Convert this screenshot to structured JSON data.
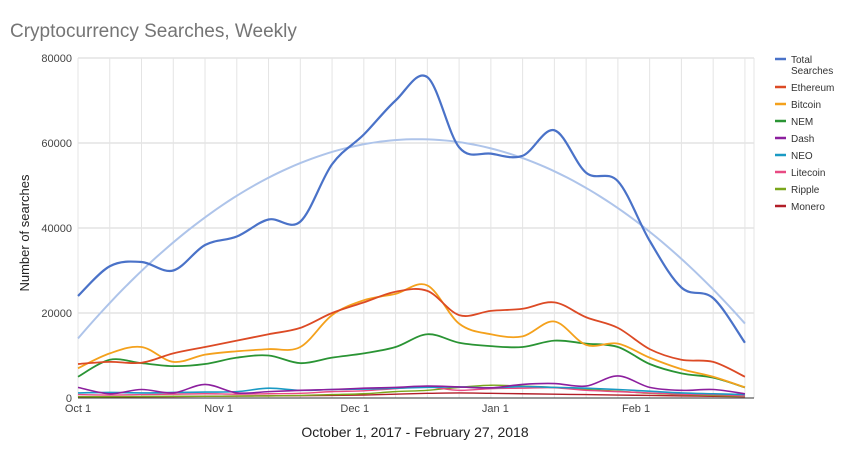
{
  "chart_data": {
    "type": "line",
    "title": "Cryptocurrency Searches, Weekly",
    "xlabel": "October 1, 2017 - February 27, 2018",
    "ylabel": "Number of searches",
    "ylim": [
      0,
      80000
    ],
    "yticks": [
      0,
      20000,
      40000,
      60000,
      80000
    ],
    "ytick_labels": [
      "0",
      "20000",
      "40000",
      "60000",
      "80000"
    ],
    "x_domain": [
      "2017-10-01",
      "2018-02-27"
    ],
    "xticks": [
      {
        "date": "2017-10-01",
        "label": "Oct 1"
      },
      {
        "date": "2017-11-01",
        "label": "Nov 1"
      },
      {
        "date": "2017-12-01",
        "label": "Dec 1"
      },
      {
        "date": "2018-01-01",
        "label": "Jan 1"
      },
      {
        "date": "2018-02-01",
        "label": "Feb 1"
      }
    ],
    "grid": true,
    "smooth": true,
    "legend_position": "right",
    "x": [
      "2017-10-01",
      "2017-10-08",
      "2017-10-15",
      "2017-10-22",
      "2017-10-29",
      "2017-11-05",
      "2017-11-12",
      "2017-11-19",
      "2017-11-26",
      "2017-12-03",
      "2017-12-10",
      "2017-12-17",
      "2017-12-24",
      "2017-12-31",
      "2018-01-07",
      "2018-01-14",
      "2018-01-21",
      "2018-01-28",
      "2018-02-04",
      "2018-02-11",
      "2018-02-18",
      "2018-02-25"
    ],
    "series": [
      {
        "name": "Total Searches",
        "color": "#4a72c8",
        "width": 2.2,
        "values": [
          24000,
          31000,
          32000,
          30000,
          36000,
          38000,
          42000,
          41500,
          55000,
          62000,
          70000,
          75500,
          59000,
          57500,
          57000,
          63000,
          53000,
          51000,
          37000,
          26000,
          23500,
          13000
        ]
      },
      {
        "name": "Ethereum",
        "color": "#dc4a25",
        "width": 1.8,
        "values": [
          8000,
          8500,
          8300,
          10500,
          12000,
          13500,
          15000,
          16500,
          20000,
          22500,
          25000,
          25200,
          19500,
          20500,
          21000,
          22500,
          19000,
          16500,
          11500,
          9000,
          8500,
          5000
        ]
      },
      {
        "name": "Bitcoin",
        "color": "#f4a11c",
        "width": 1.8,
        "values": [
          7000,
          10500,
          12000,
          8500,
          10200,
          11000,
          11500,
          12000,
          19500,
          23000,
          24500,
          26500,
          17500,
          15000,
          14500,
          18000,
          12500,
          12800,
          9500,
          6800,
          5000,
          2500
        ]
      },
      {
        "name": "NEM",
        "color": "#2a9434",
        "width": 1.8,
        "values": [
          5000,
          9000,
          8200,
          7500,
          8000,
          9500,
          10000,
          8200,
          9500,
          10500,
          12000,
          15000,
          13000,
          12200,
          12000,
          13500,
          12800,
          12000,
          8000,
          5800,
          4800,
          2500
        ]
      },
      {
        "name": "Dash",
        "color": "#8c1f9e",
        "width": 1.6,
        "values": [
          2500,
          1000,
          2000,
          1200,
          3200,
          1200,
          1500,
          1800,
          2000,
          2300,
          2500,
          2800,
          2600,
          2400,
          3200,
          3400,
          2800,
          5200,
          2500,
          1800,
          2000,
          1000
        ]
      },
      {
        "name": "NEO",
        "color": "#1a9ac4",
        "width": 1.6,
        "values": [
          1200,
          1300,
          1200,
          1300,
          1400,
          1500,
          2300,
          1800,
          2000,
          2100,
          2300,
          2500,
          2600,
          2400,
          2700,
          2500,
          2300,
          2000,
          1600,
          1200,
          1000,
          800
        ]
      },
      {
        "name": "Litecoin",
        "color": "#e84a83",
        "width": 1.4,
        "values": [
          800,
          700,
          800,
          900,
          1000,
          900,
          1000,
          1100,
          1500,
          1700,
          2200,
          2600,
          1800,
          2200,
          2300,
          2400,
          1800,
          1500,
          1200,
          900,
          800,
          500
        ]
      },
      {
        "name": "Ripple",
        "color": "#7aa61c",
        "width": 1.4,
        "values": [
          300,
          300,
          350,
          400,
          400,
          450,
          500,
          600,
          800,
          1000,
          1500,
          1800,
          2500,
          3000,
          2800,
          2500,
          2000,
          1600,
          1100,
          800,
          600,
          400
        ]
      },
      {
        "name": "Monero",
        "color": "#b21e28",
        "width": 1.4,
        "values": [
          200,
          250,
          300,
          350,
          400,
          450,
          500,
          550,
          600,
          700,
          900,
          1100,
          1200,
          1100,
          1000,
          900,
          800,
          700,
          600,
          500,
          400,
          300
        ]
      }
    ]
  }
}
